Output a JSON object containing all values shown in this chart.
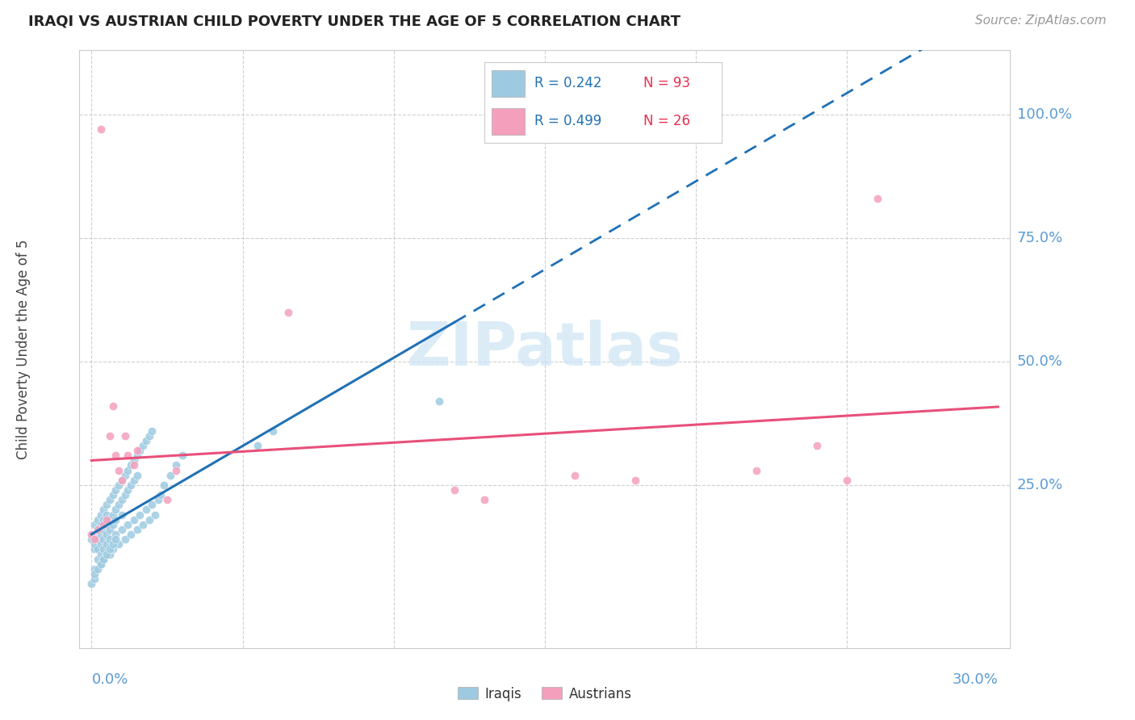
{
  "title": "IRAQI VS AUSTRIAN CHILD POVERTY UNDER THE AGE OF 5 CORRELATION CHART",
  "source": "Source: ZipAtlas.com",
  "ylabel": "Child Poverty Under the Age of 5",
  "ytick_labels": [
    "100.0%",
    "75.0%",
    "50.0%",
    "25.0%"
  ],
  "ytick_values": [
    1.0,
    0.75,
    0.5,
    0.25
  ],
  "xlim_min": 0.0,
  "xlim_max": 0.3,
  "iraqis_color": "#9ecae1",
  "austrians_color": "#f4a0bc",
  "line_iraqis_color": "#2171b5",
  "line_austrians_color": "#e8507a",
  "axis_label_color": "#5b9bd5",
  "title_color": "#222222",
  "source_color": "#999999",
  "watermark_color": "#cce5f5",
  "legend_r_iraqis": "R = 0.242",
  "legend_n_iraqis": "N = 93",
  "legend_r_austrians": "R = 0.499",
  "legend_n_austrians": "N = 26",
  "iraqis_x": [
    0.0,
    0.001,
    0.001,
    0.001,
    0.001,
    0.002,
    0.002,
    0.002,
    0.002,
    0.003,
    0.003,
    0.003,
    0.003,
    0.004,
    0.004,
    0.004,
    0.004,
    0.005,
    0.005,
    0.005,
    0.005,
    0.006,
    0.006,
    0.006,
    0.007,
    0.007,
    0.007,
    0.008,
    0.008,
    0.008,
    0.009,
    0.009,
    0.01,
    0.01,
    0.01,
    0.011,
    0.011,
    0.012,
    0.012,
    0.013,
    0.013,
    0.014,
    0.014,
    0.015,
    0.015,
    0.016,
    0.017,
    0.018,
    0.019,
    0.02,
    0.001,
    0.002,
    0.003,
    0.003,
    0.004,
    0.004,
    0.005,
    0.006,
    0.006,
    0.007,
    0.008,
    0.009,
    0.01,
    0.011,
    0.012,
    0.013,
    0.014,
    0.015,
    0.016,
    0.017,
    0.018,
    0.019,
    0.02,
    0.021,
    0.022,
    0.023,
    0.024,
    0.026,
    0.028,
    0.03,
    0.0,
    0.001,
    0.001,
    0.002,
    0.003,
    0.004,
    0.005,
    0.006,
    0.007,
    0.008,
    0.055,
    0.06,
    0.115
  ],
  "iraqis_y": [
    0.14,
    0.12,
    0.15,
    0.17,
    0.13,
    0.16,
    0.14,
    0.18,
    0.12,
    0.19,
    0.15,
    0.17,
    0.13,
    0.2,
    0.16,
    0.14,
    0.18,
    0.21,
    0.17,
    0.15,
    0.19,
    0.22,
    0.18,
    0.16,
    0.23,
    0.19,
    0.17,
    0.24,
    0.2,
    0.18,
    0.25,
    0.21,
    0.26,
    0.22,
    0.19,
    0.27,
    0.23,
    0.28,
    0.24,
    0.29,
    0.25,
    0.3,
    0.26,
    0.31,
    0.27,
    0.32,
    0.33,
    0.34,
    0.35,
    0.36,
    0.08,
    0.1,
    0.11,
    0.09,
    0.12,
    0.1,
    0.13,
    0.11,
    0.14,
    0.12,
    0.15,
    0.13,
    0.16,
    0.14,
    0.17,
    0.15,
    0.18,
    0.16,
    0.19,
    0.17,
    0.2,
    0.18,
    0.21,
    0.19,
    0.22,
    0.23,
    0.25,
    0.27,
    0.29,
    0.31,
    0.05,
    0.06,
    0.07,
    0.08,
    0.09,
    0.1,
    0.11,
    0.12,
    0.13,
    0.14,
    0.33,
    0.36,
    0.42
  ],
  "austrians_x": [
    0.0,
    0.001,
    0.002,
    0.003,
    0.004,
    0.005,
    0.006,
    0.007,
    0.008,
    0.009,
    0.01,
    0.011,
    0.012,
    0.028,
    0.014,
    0.015,
    0.025,
    0.065,
    0.12,
    0.13,
    0.16,
    0.18,
    0.22,
    0.24,
    0.25,
    0.26
  ],
  "austrians_y": [
    0.15,
    0.14,
    0.16,
    0.97,
    0.17,
    0.18,
    0.35,
    0.41,
    0.31,
    0.28,
    0.26,
    0.35,
    0.31,
    0.28,
    0.29,
    0.32,
    0.22,
    0.6,
    0.24,
    0.22,
    0.27,
    0.26,
    0.28,
    0.33,
    0.26,
    0.83
  ],
  "iraqis_line_x_end": 0.12,
  "austrians_line_x_end": 0.3
}
